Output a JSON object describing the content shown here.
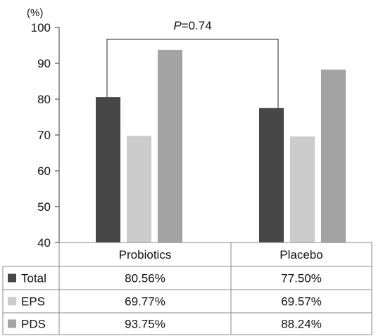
{
  "chart_data": {
    "type": "bar",
    "unit_label": "(%)",
    "title": "",
    "xlabel": "",
    "ylabel": "",
    "ylim": [
      40,
      100
    ],
    "yticks": [
      40,
      50,
      60,
      70,
      80,
      90,
      100
    ],
    "categories": [
      "Probiotics",
      "Placebo"
    ],
    "series": [
      {
        "name": "Total",
        "color": "#474747",
        "values": [
          80.56,
          77.5
        ],
        "labels": [
          "80.56%",
          "77.50%"
        ]
      },
      {
        "name": "EPS",
        "color": "#cccccc",
        "values": [
          69.77,
          69.57
        ],
        "labels": [
          "69.77%",
          "69.57%"
        ]
      },
      {
        "name": "PDS",
        "color": "#a3a3a3",
        "values": [
          93.75,
          88.24
        ],
        "labels": [
          "93.75%",
          "88.24%"
        ]
      }
    ],
    "grid": false,
    "legend": "data table below chart",
    "annotation": {
      "italic": "P",
      "rest": "=0.74"
    }
  }
}
